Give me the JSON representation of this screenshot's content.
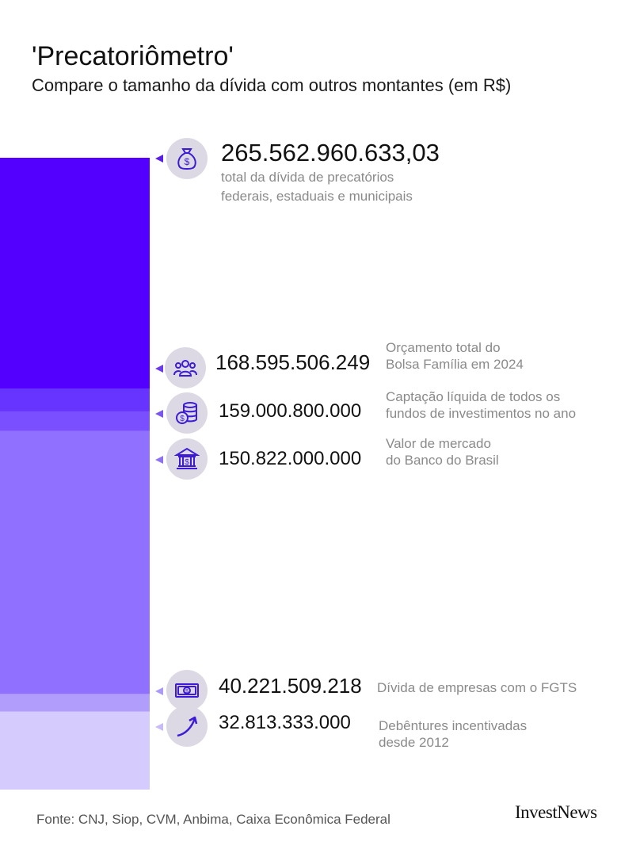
{
  "header": {
    "title": "'Precatoriômetro'",
    "subtitle": "Compare o tamanho da dívida com outros montantes (em R$)"
  },
  "chart_data": {
    "type": "bar",
    "title": "'Precatoriômetro'",
    "subtitle": "Compare o tamanho da dívida com outros montantes (em R$)",
    "categories": [
      "total da dívida de precatórios federais, estaduais e municipais",
      "Orçamento total do Bolsa Família em 2024",
      "Captação líquida de todos os fundos de investimentos no ano",
      "Valor de mercado do Banco do Brasil",
      "Dívida de empresas com o FGTS",
      "Debêntures incentivadas desde 2012"
    ],
    "values": [
      265562960633.03,
      168595506249,
      159000800000,
      150822000000,
      40221509218,
      32813333000
    ],
    "ylim": [
      0,
      265562960633.03
    ],
    "colors": [
      "#5300ff",
      "#6633ff",
      "#7a4fff",
      "#9070ff",
      "#b19dfc",
      "#d5cbfd"
    ],
    "grid": false,
    "legend": "none"
  },
  "items": [
    {
      "value": "265.562.960.633,03",
      "desc_lines": [
        "total da dívida de precatórios",
        "federais, estaduais e municipais"
      ],
      "icon": "money-bag-icon",
      "marker_color": "#5b1ee6"
    },
    {
      "value": "168.595.506.249",
      "desc_lines": [
        "Orçamento total do",
        "Bolsa Família em 2024"
      ],
      "icon": "people-icon",
      "marker_color": "#6a3aeb"
    },
    {
      "value": "159.000.800.000",
      "desc_lines": [
        "Captação líquida de todos os",
        "fundos de investimentos no ano"
      ],
      "icon": "coins-icon",
      "marker_color": "#7a55ee"
    },
    {
      "value": "150.822.000.000",
      "desc_lines": [
        "Valor de mercado",
        "do Banco do Brasil"
      ],
      "icon": "bank-icon",
      "marker_color": "#8e70f2"
    },
    {
      "value": "40.221.509.218",
      "desc_lines": [
        "Dívida de empresas com o FGTS"
      ],
      "icon": "banknote-icon",
      "marker_color": "#ad9af6"
    },
    {
      "value": "32.813.333.000",
      "desc_lines": [
        "Debêntures incentivadas",
        "desde 2012"
      ],
      "icon": "growth-arrow-icon",
      "marker_color": "#c8bbf8"
    }
  ],
  "footer": {
    "source": "Fonte: CNJ, Siop, CVM, Anbima, Caixa Econômica Federal",
    "brand": "InvestNews"
  }
}
